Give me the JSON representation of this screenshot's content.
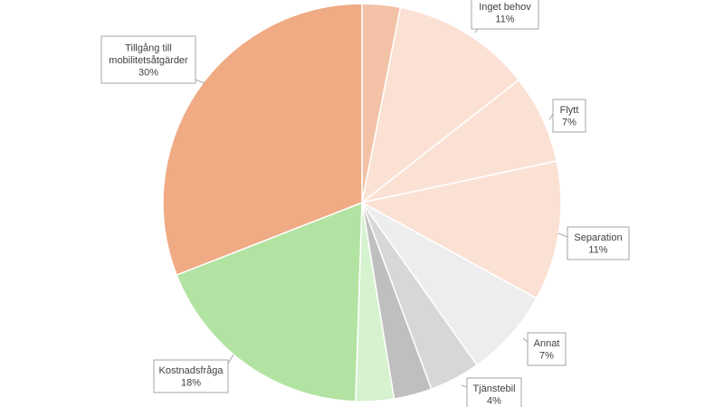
{
  "chart_data": {
    "type": "pie",
    "title": "",
    "slices": [
      {
        "label": "",
        "percent": 3,
        "label_shown": "",
        "color": "#f3c2a6"
      },
      {
        "label": "Inget behov",
        "percent": 11,
        "label_shown": "11%",
        "color": "#fbe1d4"
      },
      {
        "label": "Flytt",
        "percent": 7,
        "label_shown": "7%",
        "color": "#fbe1d4"
      },
      {
        "label": "Separation",
        "percent": 11,
        "label_shown": "11%",
        "color": "#fbe1d4"
      },
      {
        "label": "Annat",
        "percent": 7,
        "label_shown": "7%",
        "color": "#ededed"
      },
      {
        "label": "Tjänstebil",
        "percent": 4,
        "label_shown": "4%",
        "color": "#d7d7d7"
      },
      {
        "label": "",
        "percent": 3,
        "label_shown": "",
        "color": "#bfbfbf"
      },
      {
        "label": "",
        "percent": 3,
        "label_shown": "",
        "color": "#d6f2cf"
      },
      {
        "label": "Kostnadsfråga",
        "percent": 18,
        "label_shown": "18%",
        "color": "#b3e3a2"
      },
      {
        "label": "Tillgång till mobilitetsåtgärder",
        "percent": 30,
        "label_shown": "30%",
        "color": "#f0aa84"
      }
    ]
  }
}
